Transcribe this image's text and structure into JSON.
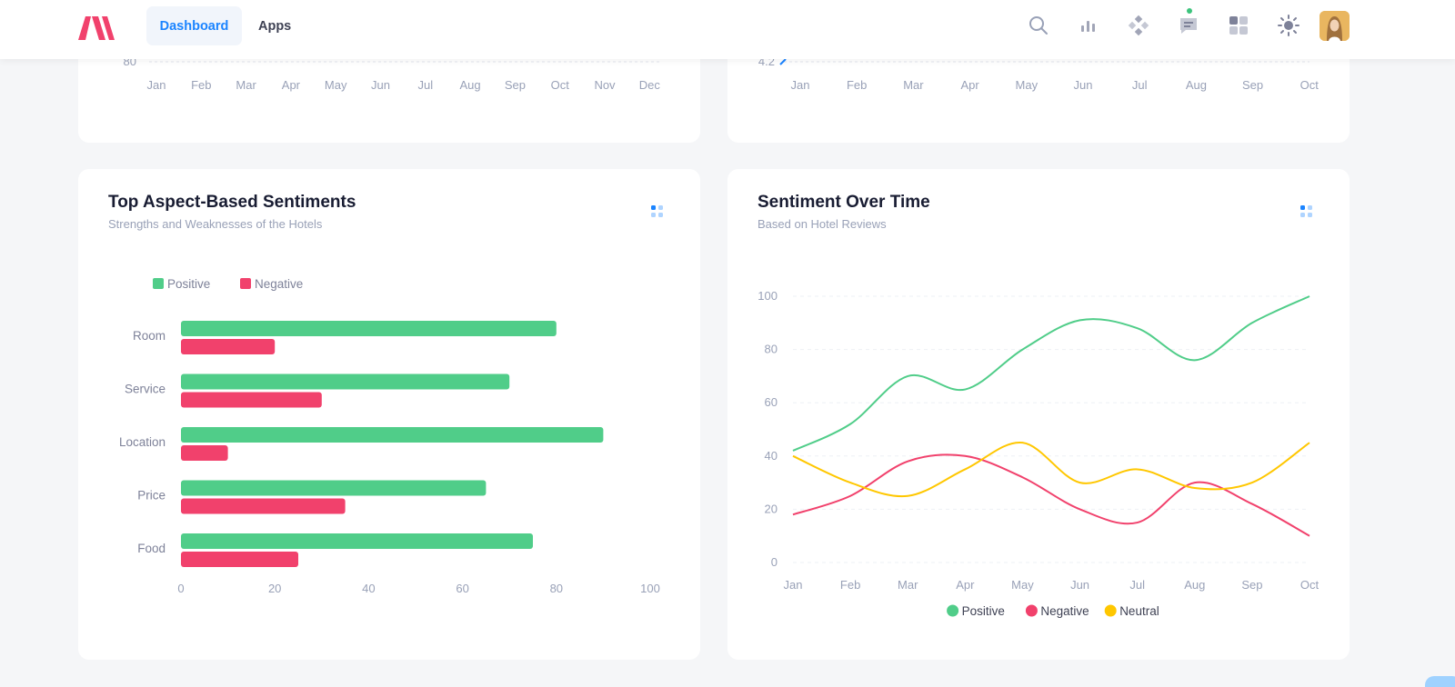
{
  "header": {
    "brand": "logo",
    "tabs": [
      {
        "label": "Dashboard",
        "active": true
      },
      {
        "label": "Apps",
        "active": false
      }
    ],
    "icons": [
      "search-icon",
      "chart-icon",
      "apps-diamond-icon",
      "chat-icon",
      "layout-icon",
      "sun-icon"
    ],
    "accent": "#1b84ff"
  },
  "top_left_card": {
    "y_tick": "80",
    "months": [
      "Jan",
      "Feb",
      "Mar",
      "Apr",
      "May",
      "Jun",
      "Jul",
      "Aug",
      "Sep",
      "Oct",
      "Nov",
      "Dec"
    ]
  },
  "top_right_card": {
    "y_tick": "4.2",
    "months": [
      "Jan",
      "Feb",
      "Mar",
      "Apr",
      "May",
      "Jun",
      "Jul",
      "Aug",
      "Sep",
      "Oct"
    ]
  },
  "aspect_card": {
    "title": "Top Aspect-Based Sentiments",
    "subtitle": "Strengths and Weaknesses of the Hotels"
  },
  "time_card": {
    "title": "Sentiment Over Time",
    "subtitle": "Based on Hotel Reviews"
  },
  "colors": {
    "positive": "#50cd89",
    "negative": "#f1416c",
    "neutral": "#ffc700"
  },
  "chart_data": [
    {
      "type": "bar",
      "orientation": "horizontal",
      "title": "Top Aspect-Based Sentiments",
      "categories": [
        "Room",
        "Service",
        "Location",
        "Price",
        "Food"
      ],
      "series": [
        {
          "name": "Positive",
          "values": [
            80,
            70,
            90,
            65,
            75
          ]
        },
        {
          "name": "Negative",
          "values": [
            20,
            30,
            10,
            35,
            25
          ]
        }
      ],
      "xlim": [
        0,
        100
      ],
      "xticks": [
        "0",
        "20",
        "40",
        "60",
        "80",
        "100"
      ],
      "legend": "top-left"
    },
    {
      "type": "line",
      "title": "Sentiment Over Time",
      "categories": [
        "Jan",
        "Feb",
        "Mar",
        "Apr",
        "May",
        "Jun",
        "Jul",
        "Aug",
        "Sep",
        "Oct"
      ],
      "series": [
        {
          "name": "Positive",
          "values": [
            42,
            52,
            70,
            65,
            80,
            91,
            88,
            76,
            90,
            100
          ]
        },
        {
          "name": "Negative",
          "values": [
            18,
            25,
            38,
            40,
            32,
            20,
            15,
            30,
            22,
            10
          ]
        },
        {
          "name": "Neutral",
          "values": [
            40,
            30,
            25,
            35,
            45,
            30,
            35,
            28,
            30,
            45
          ]
        }
      ],
      "ylim": [
        0,
        100
      ],
      "yticks": [
        "0",
        "20",
        "40",
        "60",
        "80",
        "100"
      ],
      "legend": "bottom-center"
    }
  ]
}
